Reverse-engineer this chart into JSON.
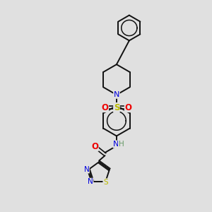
{
  "bg": "#e0e0e0",
  "bc": "#111111",
  "Nc": "#0000dd",
  "Oc": "#ee0000",
  "Sc": "#bbbb00",
  "Hc": "#669966",
  "lw": 1.4,
  "lw_inner": 1.2,
  "fs": 7.5,
  "figsize": [
    3.0,
    3.0
  ],
  "dpi": 100,
  "xlim": [
    0,
    10
  ],
  "ylim": [
    0,
    10
  ]
}
